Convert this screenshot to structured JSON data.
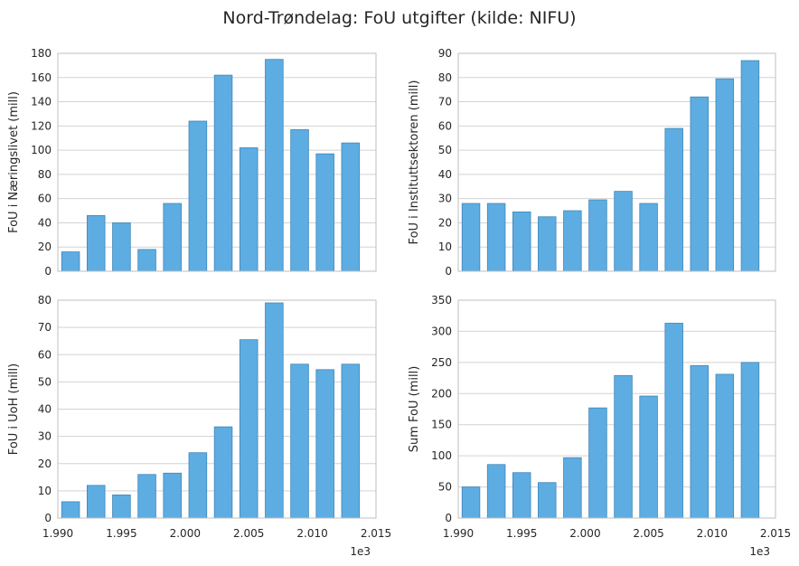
{
  "figure": {
    "title": "Nord-Trøndelag: FoU utgifter (kilde: NIFU)",
    "x_offset_label": "1e3"
  },
  "chart_data": [
    {
      "type": "bar",
      "ylabel": "FoU i Næringslivet (mill)",
      "x": [
        1991,
        1993,
        1995,
        1997,
        1999,
        2001,
        2003,
        2005,
        2007,
        2009,
        2011,
        2013
      ],
      "values": [
        16,
        46,
        40,
        18,
        56,
        124,
        162,
        102,
        175,
        117,
        97,
        106
      ],
      "xlim": [
        1990,
        2015
      ],
      "ylim": [
        0,
        180
      ],
      "yticks": [
        0,
        20,
        40,
        60,
        80,
        100,
        120,
        140,
        160,
        180
      ],
      "xticks": [],
      "grid": true
    },
    {
      "type": "bar",
      "ylabel": "FoU i Instituttsektoren (mill)",
      "x": [
        1991,
        1993,
        1995,
        1997,
        1999,
        2001,
        2003,
        2005,
        2007,
        2009,
        2011,
        2013
      ],
      "values": [
        28,
        28,
        24.5,
        22.5,
        25,
        29.5,
        33,
        28,
        59,
        72,
        79.5,
        87
      ],
      "xlim": [
        1990,
        2015
      ],
      "ylim": [
        0,
        90
      ],
      "yticks": [
        0,
        10,
        20,
        30,
        40,
        50,
        60,
        70,
        80,
        90
      ],
      "xticks": [],
      "grid": true
    },
    {
      "type": "bar",
      "ylabel": "FoU i UoH (mill)",
      "x": [
        1991,
        1993,
        1995,
        1997,
        1999,
        2001,
        2003,
        2005,
        2007,
        2009,
        2011,
        2013
      ],
      "values": [
        6,
        12,
        8.5,
        16,
        16.5,
        24,
        33.5,
        65.5,
        79,
        56.5,
        54.5,
        56.5
      ],
      "xlim": [
        1990,
        2015
      ],
      "ylim": [
        0,
        80
      ],
      "yticks": [
        0,
        10,
        20,
        30,
        40,
        50,
        60,
        70,
        80
      ],
      "xticks": [
        "1.990",
        "1.995",
        "2.000",
        "2.005",
        "2.010",
        "2.015"
      ],
      "grid": true
    },
    {
      "type": "bar",
      "ylabel": "Sum FoU (mill)",
      "x": [
        1991,
        1993,
        1995,
        1997,
        1999,
        2001,
        2003,
        2005,
        2007,
        2009,
        2011,
        2013
      ],
      "values": [
        50,
        86,
        73,
        57,
        97,
        177,
        229,
        196,
        313,
        245,
        231,
        250
      ],
      "xlim": [
        1990,
        2015
      ],
      "ylim": [
        0,
        350
      ],
      "yticks": [
        0,
        50,
        100,
        150,
        200,
        250,
        300,
        350
      ],
      "xticks": [
        "1.990",
        "1.995",
        "2.000",
        "2.005",
        "2.010",
        "2.015"
      ],
      "grid": true
    }
  ],
  "colors": {
    "bar": "#5DADE2",
    "bar_edge": "#3E86B8",
    "grid": "#D3D3D3",
    "spine": "#BFBFBF"
  }
}
